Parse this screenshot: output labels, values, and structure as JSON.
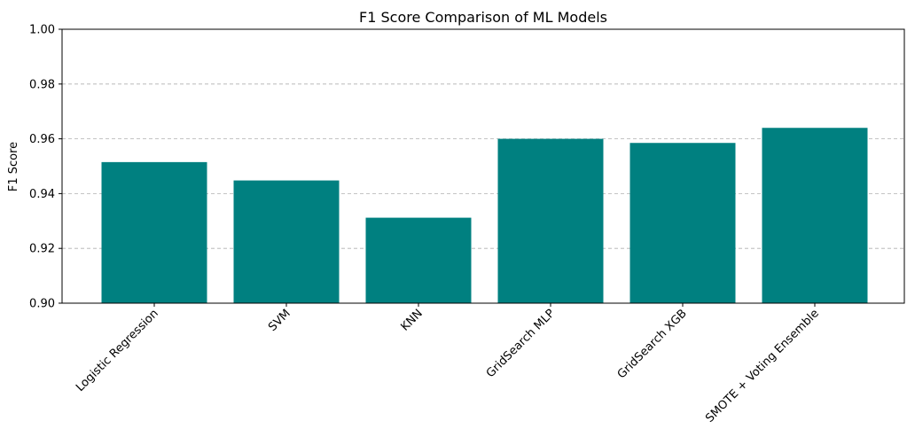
{
  "chart_data": {
    "type": "bar",
    "title": "F1 Score Comparison of ML Models",
    "xlabel": "",
    "ylabel": "F1 Score",
    "categories": [
      "Logistic Regression",
      "SVM",
      "KNN",
      "GridSearch MLP",
      "GridSearch XGB",
      "SMOTE + Voting Ensemble"
    ],
    "values": [
      0.9515,
      0.9448,
      0.9312,
      0.96,
      0.9585,
      0.964
    ],
    "ylim": [
      0.9,
      1.0
    ],
    "yticks": [
      "0.90",
      "0.92",
      "0.94",
      "0.96",
      "0.98",
      "1.00"
    ],
    "grid": "y-dashed",
    "bar_color": "#008080"
  }
}
